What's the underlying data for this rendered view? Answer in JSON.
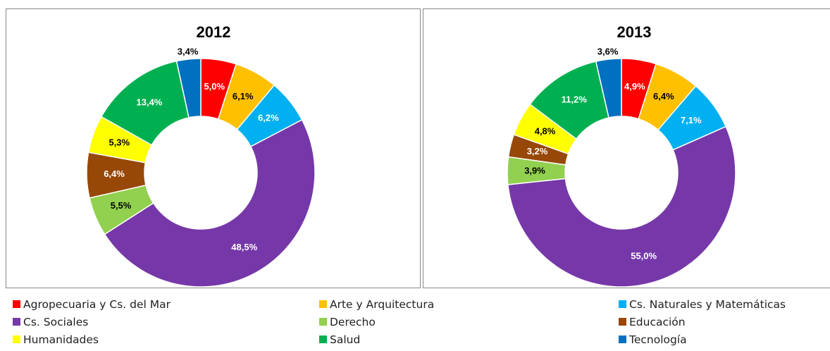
{
  "chart_data": [
    {
      "type": "pie",
      "donut": true,
      "title": "2012",
      "values": [
        5.0,
        6.1,
        6.2,
        48.5,
        5.5,
        6.4,
        5.3,
        13.4,
        3.4
      ],
      "value_labels": [
        "5,0%",
        "6,1%",
        "6,2%",
        "48,5%",
        "5,5%",
        "6,4%",
        "5,3%",
        "13,4%",
        "3,4%"
      ]
    },
    {
      "type": "pie",
      "donut": true,
      "title": "2013",
      "values": [
        4.9,
        6.4,
        7.1,
        55.0,
        3.9,
        3.2,
        4.8,
        11.2,
        3.6
      ],
      "value_labels": [
        "4,9%",
        "6,4%",
        "7,1%",
        "55,0%",
        "3,9%",
        "3,2%",
        "4,8%",
        "11,2%",
        "3,6%"
      ]
    }
  ],
  "legend": {
    "categories": [
      "Agropecuaria y Cs. del Mar",
      "Arte y Arquitectura",
      "Cs. Naturales y Matemáticas",
      "Cs. Sociales",
      "Derecho",
      "Educación",
      "Humanidades",
      "Salud",
      "Tecnología"
    ],
    "colors": [
      "#ff0000",
      "#ffc000",
      "#00b0f0",
      "#7638a8",
      "#92d050",
      "#974706",
      "#ffff00",
      "#00b050",
      "#0070c0"
    ]
  }
}
